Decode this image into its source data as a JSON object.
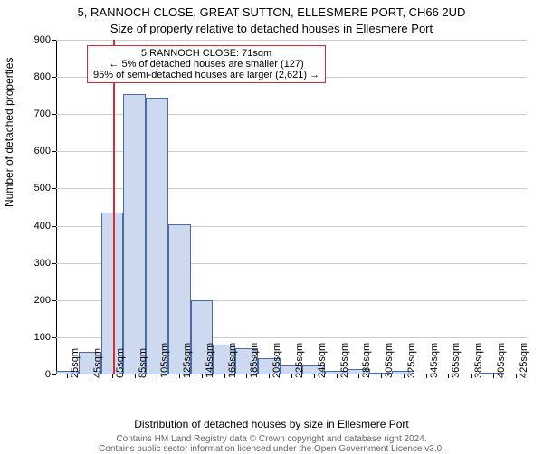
{
  "title_main": "5, RANNOCH CLOSE, GREAT SUTTON, ELLESMERE PORT, CH66 2UD",
  "title_sub": "Size of property relative to detached houses in Ellesmere Port",
  "ylabel": "Number of detached properties",
  "xlabel": "Distribution of detached houses by size in Ellesmere Port",
  "footer1": "Contains HM Land Registry data © Crown copyright and database right 2024.",
  "footer2": "Contains public sector information licensed under the Open Government Licence v3.0.",
  "annotation": {
    "line1": "5 RANNOCH CLOSE: 71sqm",
    "line2": "← 5% of detached houses are smaller (127)",
    "line3": "95% of semi-detached houses are larger (2,621) →"
  },
  "chart": {
    "type": "histogram",
    "ylim": [
      0,
      900
    ],
    "ytick_step": 100,
    "x_min": 20,
    "x_max": 440,
    "x_labels": [
      "25sqm",
      "45sqm",
      "65sqm",
      "85sqm",
      "105sqm",
      "125sqm",
      "145sqm",
      "165sqm",
      "185sqm",
      "205sqm",
      "225sqm",
      "245sqm",
      "265sqm",
      "285sqm",
      "305sqm",
      "325sqm",
      "345sqm",
      "365sqm",
      "385sqm",
      "405sqm",
      "425sqm"
    ],
    "bin_width": 20,
    "bars": [
      10,
      60,
      435,
      755,
      745,
      405,
      200,
      80,
      70,
      45,
      25,
      25,
      10,
      15,
      5,
      10,
      0,
      0,
      0,
      5,
      0
    ],
    "bar_fill": "#cdd9ee",
    "bar_border": "#4a6aa5",
    "marker_x": 71,
    "marker_color": "#d92b2b",
    "background": "#ffffff",
    "grid_color": "#cccccc",
    "title_fontsize": 13,
    "label_fontsize": 12,
    "tick_fontsize": 11,
    "annotation_fontsize": 11,
    "footer_fontsize": 10,
    "footer_color": "#666666"
  }
}
